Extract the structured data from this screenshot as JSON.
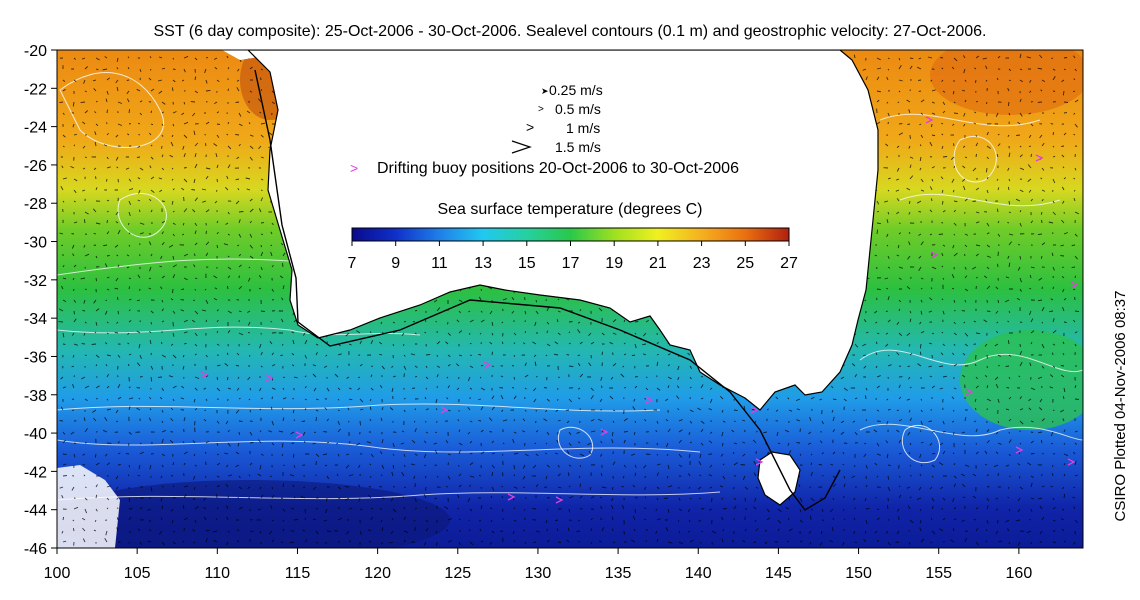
{
  "title": "SST (6 day composite): 25-Oct-2006 - 30-Oct-2006. Sealevel contours (0.1 m) and geostrophic velocity: 27-Oct-2006.",
  "side_label": "CSIRO Plotted 04-Nov-2006 08:37",
  "axes": {
    "x_ticks": [
      "100",
      "105",
      "110",
      "115",
      "120",
      "125",
      "130",
      "135",
      "140",
      "145",
      "150",
      "155",
      "160"
    ],
    "y_ticks": [
      "-20",
      "-22",
      "-24",
      "-26",
      "-28",
      "-30",
      "-32",
      "-34",
      "-36",
      "-38",
      "-40",
      "-42",
      "-44",
      "-46"
    ],
    "lon_range": [
      100,
      164
    ],
    "lat_range": [
      -46,
      -20
    ]
  },
  "legend": {
    "velocity_scales": [
      "0.25 m/s",
      "0.5 m/s",
      "1 m/s",
      "1.5 m/s"
    ],
    "buoy_text": "Drifting buoy positions 20-Oct-2006 to 30-Oct-2006",
    "buoy_color": "#e040e0"
  },
  "colorbar": {
    "title": "Sea surface temperature (degrees C)",
    "ticks": [
      "7",
      "9",
      "11",
      "13",
      "15",
      "17",
      "19",
      "21",
      "23",
      "25",
      "27"
    ],
    "stops": [
      "#0a0a8c",
      "#1030c8",
      "#1f7fe8",
      "#22c8f0",
      "#26d0a0",
      "#2ac84a",
      "#9ee020",
      "#f0f020",
      "#f5b020",
      "#ea7010",
      "#b02010"
    ]
  }
}
